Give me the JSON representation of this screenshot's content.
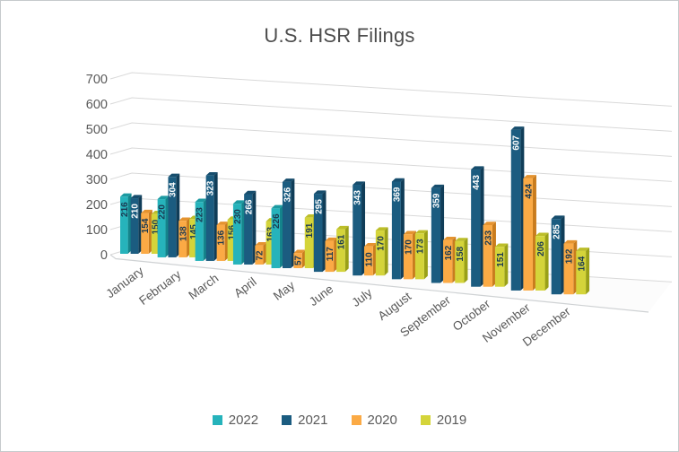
{
  "chart_data": {
    "type": "bar",
    "style": "3d-clustered-column",
    "title": "U.S. HSR Filings",
    "xlabel": "",
    "ylabel": "",
    "ylim": [
      0,
      700
    ],
    "ytick_step": 100,
    "grid": true,
    "legend_position": "bottom",
    "categories": [
      "January",
      "February",
      "March",
      "April",
      "May",
      "June",
      "July",
      "August",
      "September",
      "October",
      "November",
      "December"
    ],
    "series": [
      {
        "name": "2022",
        "color": "#26b3bb",
        "top_color": "#1c9aa1",
        "side_color": "#14848b",
        "label_color": "#1b3a52",
        "values": [
          216,
          220,
          223,
          230,
          226,
          null,
          null,
          null,
          null,
          null,
          null,
          null
        ]
      },
      {
        "name": "2021",
        "color": "#1b5c80",
        "top_color": "#164d6d",
        "side_color": "#103d58",
        "label_color": "#ffffff",
        "values": [
          210,
          304,
          323,
          266,
          326,
          295,
          343,
          369,
          359,
          443,
          607,
          285
        ]
      },
      {
        "name": "2020",
        "color": "#fbaa45",
        "top_color": "#e5932f",
        "side_color": "#c97c1e",
        "label_color": "#1b3a52",
        "values": [
          154,
          138,
          136,
          72,
          57,
          117,
          110,
          170,
          162,
          233,
          424,
          192
        ]
      },
      {
        "name": "2019",
        "color": "#d4d43a",
        "top_color": "#bcbe29",
        "side_color": "#9aa017",
        "label_color": "#1b3a52",
        "values": [
          150,
          145,
          156,
          163,
          191,
          161,
          170,
          173,
          158,
          151,
          206,
          164
        ]
      }
    ],
    "axis_text_color": "#595959",
    "gridline_color": "#d9d9d9",
    "floor_edge_color": "#cfd2d4",
    "background_color": "#ffffff",
    "border_color": "#c6cacc"
  }
}
